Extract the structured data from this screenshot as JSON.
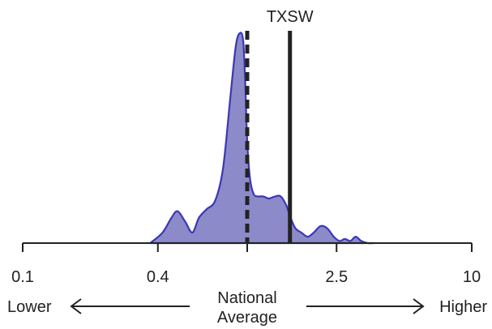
{
  "chart_data": {
    "type": "area",
    "title": "",
    "region_label": "TXSW",
    "x_scale": "log",
    "xlim": [
      0.1,
      10
    ],
    "ticks": [
      {
        "value": 0.1,
        "label": "0.1"
      },
      {
        "value": 0.4,
        "label": "0.4"
      },
      {
        "value": 2.5,
        "label": "2.5"
      },
      {
        "value": 10,
        "label": "10"
      }
    ],
    "national_average": {
      "value": 1.0,
      "label_line1": "National",
      "label_line2": "Average",
      "style": "dashed"
    },
    "region_value": 1.55,
    "direction_labels": {
      "low": "Lower",
      "high": "Higher"
    },
    "density": {
      "x": [
        0.37,
        0.42,
        0.46,
        0.49,
        0.53,
        0.57,
        0.61,
        0.66,
        0.72,
        0.78,
        0.84,
        0.89,
        0.93,
        0.96,
        0.98,
        1.0,
        1.03,
        1.07,
        1.12,
        1.18,
        1.25,
        1.33,
        1.41,
        1.49,
        1.56,
        1.64,
        1.74,
        1.86,
        1.98,
        2.12,
        2.27,
        2.43,
        2.58,
        2.72,
        2.88,
        3.04,
        3.22,
        3.45,
        3.68
      ],
      "y": [
        0.0,
        0.05,
        0.12,
        0.15,
        0.1,
        0.05,
        0.12,
        0.16,
        0.2,
        0.35,
        0.68,
        0.93,
        0.99,
        0.95,
        0.75,
        0.48,
        0.3,
        0.23,
        0.22,
        0.22,
        0.21,
        0.22,
        0.22,
        0.18,
        0.12,
        0.07,
        0.05,
        0.03,
        0.05,
        0.08,
        0.07,
        0.03,
        0.01,
        0.02,
        0.01,
        0.03,
        0.01,
        0.0,
        0.0
      ],
      "ylim": [
        0,
        1
      ],
      "fill_color": "#8d8ac9",
      "line_color": "#3b37b5"
    },
    "line_color": "#222222"
  }
}
